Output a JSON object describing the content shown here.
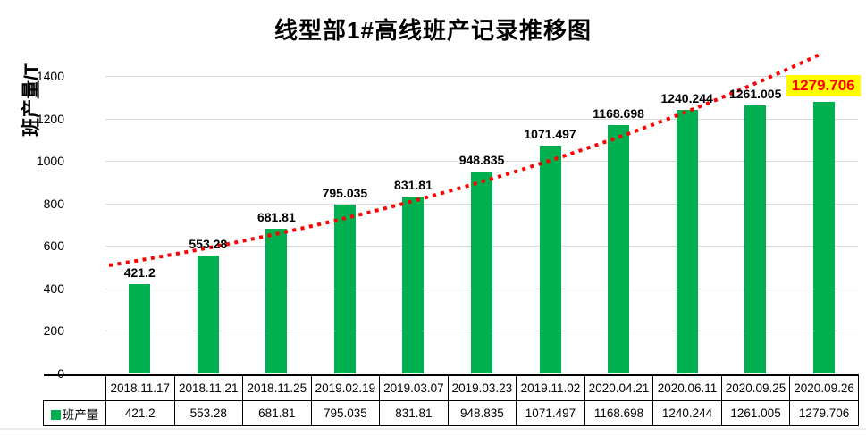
{
  "chart_data": {
    "type": "bar",
    "title": "线型部1#高线班产记录推移图",
    "ylabel": "班产量/T",
    "series_name": "班产量",
    "categories": [
      "2018.11.17",
      "2018.11.21",
      "2018.11.25",
      "2019.02.19",
      "2019.03.07",
      "2019.03.23",
      "2019.11.02",
      "2020.04.21",
      "2020.06.11",
      "2020.09.25",
      "2020.09.26"
    ],
    "values": [
      421.2,
      553.28,
      681.81,
      795.035,
      831.81,
      948.835,
      1071.497,
      1168.698,
      1240.244,
      1261.005,
      1279.706
    ],
    "ylim": [
      0,
      1400
    ],
    "ytick_step": 200,
    "grid": "horizontal",
    "legend_position": "table-left",
    "colors": {
      "bar": "#00B050",
      "trendline": "#FF0000",
      "gridline": "#d9d9d9",
      "highlight_bg": "#FFFF00",
      "highlight_text": "#FF0000"
    },
    "trendline_style": "dotted",
    "data_table": true
  }
}
